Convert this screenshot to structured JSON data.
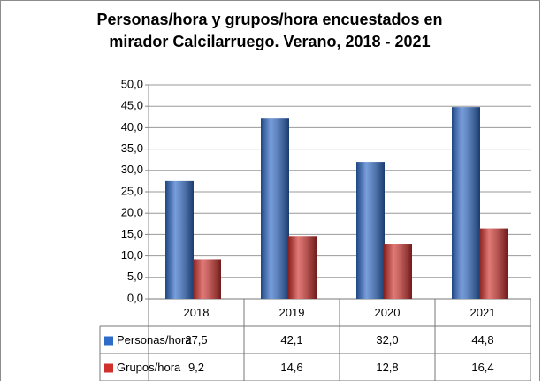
{
  "chart_data": {
    "type": "bar",
    "title": "Personas/hora y grupos/hora encuestados en mirador Calcilarruego. Verano, 2018 - 2021",
    "categories": [
      "2018",
      "2019",
      "2020",
      "2021"
    ],
    "series": [
      {
        "name": "Personas/hora",
        "color": "#2f6bc8",
        "values": [
          27.5,
          42.1,
          32.0,
          44.8
        ],
        "value_labels": [
          "27,5",
          "42,1",
          "32,0",
          "44,8"
        ]
      },
      {
        "name": "Grupos/hora",
        "color": "#d0312d",
        "values": [
          9.2,
          14.6,
          12.8,
          16.4
        ],
        "value_labels": [
          "9,2",
          "14,6",
          "12,8",
          "16,4"
        ]
      }
    ],
    "ylim": [
      0,
      50
    ],
    "yticks": [
      {
        "value": 0,
        "label": "0,0"
      },
      {
        "value": 5,
        "label": "5,0"
      },
      {
        "value": 10,
        "label": "10,0"
      },
      {
        "value": 15,
        "label": "15,0"
      },
      {
        "value": 20,
        "label": "20,0"
      },
      {
        "value": 25,
        "label": "25,0"
      },
      {
        "value": 30,
        "label": "30,0"
      },
      {
        "value": 35,
        "label": "35,0"
      },
      {
        "value": 40,
        "label": "40,0"
      },
      {
        "value": 45,
        "label": "45,0"
      },
      {
        "value": 50,
        "label": "50,0"
      }
    ],
    "grid": true
  }
}
